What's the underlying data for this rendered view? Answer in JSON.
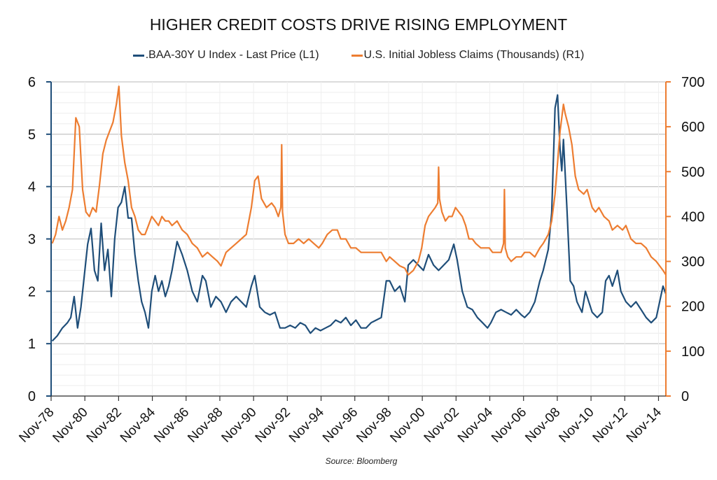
{
  "chart_data": {
    "type": "line",
    "title": "HIGHER CREDIT COSTS DRIVE RISING EMPLOYMENT",
    "source": "Source: Bloomberg",
    "legend_position": "top-center",
    "grid": true,
    "x_axis": {
      "range": [
        1978.833,
        2015.27
      ],
      "tick_values": [
        1978.833,
        1980.833,
        1982.833,
        1984.833,
        1986.833,
        1988.833,
        1990.833,
        1992.833,
        1994.833,
        1996.833,
        1998.833,
        2000.833,
        2002.833,
        2004.833,
        2006.833,
        2008.833,
        2010.833,
        2012.833,
        2014.833
      ],
      "tick_labels": [
        "Nov-78",
        "Nov-80",
        "Nov-82",
        "Nov-84",
        "Nov-86",
        "Nov-88",
        "Nov-90",
        "Nov-92",
        "Nov-94",
        "Nov-96",
        "Nov-98",
        "Nov-00",
        "Nov-02",
        "Nov-04",
        "Nov-06",
        "Nov-08",
        "Nov-10",
        "Nov-12",
        "Nov-14"
      ]
    },
    "y_left": {
      "range": [
        0,
        6
      ],
      "tick_labels": [
        "0",
        "1",
        "2",
        "3",
        "4",
        "5",
        "6"
      ],
      "color": "#1f4e79"
    },
    "y_right": {
      "range": [
        0,
        700
      ],
      "tick_labels": [
        "0",
        "100",
        "200",
        "300",
        "400",
        "500",
        "600",
        "700"
      ],
      "color": "#ed7d31"
    },
    "series": [
      {
        "name": ".BAA-30Y U Index - Last Price (L1)",
        "axis": "left",
        "color": "#1f4e79",
        "x": [
          1978.9,
          1979.2,
          1979.5,
          1979.8,
          1980.0,
          1980.2,
          1980.4,
          1980.6,
          1980.8,
          1981.0,
          1981.2,
          1981.4,
          1981.6,
          1981.8,
          1982.0,
          1982.2,
          1982.4,
          1982.6,
          1982.8,
          1983.0,
          1983.2,
          1983.4,
          1983.6,
          1983.8,
          1984.0,
          1984.2,
          1984.4,
          1984.6,
          1984.8,
          1985.0,
          1985.2,
          1985.4,
          1985.6,
          1985.8,
          1986.0,
          1986.3,
          1986.6,
          1986.9,
          1987.2,
          1987.5,
          1987.8,
          1988.0,
          1988.3,
          1988.6,
          1988.9,
          1989.2,
          1989.5,
          1989.8,
          1990.1,
          1990.4,
          1990.7,
          1990.9,
          1991.2,
          1991.5,
          1991.8,
          1992.1,
          1992.4,
          1992.7,
          1993.0,
          1993.3,
          1993.6,
          1993.9,
          1994.2,
          1994.5,
          1994.8,
          1995.1,
          1995.4,
          1995.7,
          1996.0,
          1996.3,
          1996.6,
          1996.9,
          1997.2,
          1997.5,
          1997.8,
          1998.1,
          1998.4,
          1998.7,
          1998.9,
          1999.2,
          1999.5,
          1999.8,
          2000.0,
          2000.3,
          2000.6,
          2000.9,
          2001.2,
          2001.5,
          2001.8,
          2002.1,
          2002.4,
          2002.7,
          2002.9,
          2003.2,
          2003.5,
          2003.8,
          2004.1,
          2004.4,
          2004.7,
          2004.9,
          2005.2,
          2005.5,
          2005.8,
          2006.1,
          2006.4,
          2006.7,
          2006.9,
          2007.2,
          2007.5,
          2007.8,
          2008.0,
          2008.3,
          2008.5,
          2008.7,
          2008.85,
          2009.0,
          2009.1,
          2009.2,
          2009.4,
          2009.6,
          2009.8,
          2010.0,
          2010.3,
          2010.5,
          2010.7,
          2010.9,
          2011.2,
          2011.5,
          2011.7,
          2011.9,
          2012.1,
          2012.4,
          2012.6,
          2012.9,
          2013.2,
          2013.5,
          2013.8,
          2014.1,
          2014.4,
          2014.7,
          2014.9,
          2015.1,
          2015.27
        ],
        "values": [
          1.05,
          1.15,
          1.3,
          1.4,
          1.5,
          1.9,
          1.3,
          1.7,
          2.3,
          2.9,
          3.2,
          2.4,
          2.2,
          3.3,
          2.4,
          2.8,
          1.9,
          3.0,
          3.6,
          3.7,
          4.0,
          3.4,
          3.4,
          2.7,
          2.2,
          1.8,
          1.6,
          1.3,
          2.0,
          2.3,
          2.0,
          2.2,
          1.9,
          2.1,
          2.4,
          2.95,
          2.7,
          2.4,
          2.0,
          1.8,
          2.3,
          2.2,
          1.7,
          1.9,
          1.8,
          1.6,
          1.8,
          1.9,
          1.8,
          1.7,
          2.1,
          2.3,
          1.7,
          1.6,
          1.55,
          1.6,
          1.3,
          1.3,
          1.35,
          1.3,
          1.4,
          1.35,
          1.2,
          1.3,
          1.25,
          1.3,
          1.35,
          1.45,
          1.4,
          1.5,
          1.35,
          1.45,
          1.3,
          1.3,
          1.4,
          1.45,
          1.5,
          2.2,
          2.2,
          2.0,
          2.1,
          1.8,
          2.5,
          2.6,
          2.5,
          2.4,
          2.7,
          2.5,
          2.4,
          2.5,
          2.6,
          2.9,
          2.6,
          2.0,
          1.7,
          1.65,
          1.5,
          1.4,
          1.3,
          1.4,
          1.6,
          1.65,
          1.6,
          1.55,
          1.65,
          1.55,
          1.5,
          1.6,
          1.8,
          2.2,
          2.4,
          2.8,
          3.5,
          5.5,
          5.75,
          4.7,
          4.3,
          4.9,
          3.6,
          2.2,
          2.1,
          1.8,
          1.6,
          2.0,
          1.8,
          1.6,
          1.5,
          1.6,
          2.2,
          2.3,
          2.1,
          2.4,
          2.0,
          1.8,
          1.7,
          1.8,
          1.65,
          1.5,
          1.4,
          1.5,
          1.8,
          2.1,
          1.95
        ]
      },
      {
        "name": "U.S. Initial Jobless Claims (Thousands) (R1)",
        "axis": "right",
        "color": "#ed7d31",
        "x": [
          1978.9,
          1979.1,
          1979.3,
          1979.5,
          1979.7,
          1979.9,
          1980.1,
          1980.3,
          1980.5,
          1980.7,
          1980.9,
          1981.1,
          1981.3,
          1981.5,
          1981.7,
          1981.9,
          1982.1,
          1982.3,
          1982.5,
          1982.7,
          1982.85,
          1983.0,
          1983.2,
          1983.4,
          1983.6,
          1983.8,
          1984.0,
          1984.2,
          1984.4,
          1984.6,
          1984.8,
          1985.0,
          1985.2,
          1985.4,
          1985.6,
          1985.8,
          1986.0,
          1986.3,
          1986.6,
          1986.9,
          1987.2,
          1987.5,
          1987.8,
          1988.1,
          1988.4,
          1988.7,
          1988.9,
          1989.2,
          1989.5,
          1989.8,
          1990.1,
          1990.4,
          1990.7,
          1990.9,
          1991.1,
          1991.3,
          1991.6,
          1991.9,
          1992.1,
          1992.3,
          1992.45,
          1992.5,
          1992.55,
          1992.7,
          1992.9,
          1993.2,
          1993.5,
          1993.8,
          1994.1,
          1994.4,
          1994.7,
          1994.9,
          1995.2,
          1995.5,
          1995.8,
          1996.0,
          1996.3,
          1996.6,
          1996.9,
          1997.2,
          1997.5,
          1997.8,
          1998.1,
          1998.4,
          1998.7,
          1998.9,
          1999.2,
          1999.5,
          1999.8,
          2000.0,
          2000.3,
          2000.6,
          2000.8,
          2001.0,
          2001.2,
          2001.4,
          2001.6,
          2001.75,
          2001.8,
          2001.85,
          2002.0,
          2002.2,
          2002.4,
          2002.6,
          2002.8,
          2003.0,
          2003.2,
          2003.4,
          2003.6,
          2003.8,
          2004.0,
          2004.3,
          2004.6,
          2004.8,
          2005.0,
          2005.2,
          2005.5,
          2005.65,
          2005.7,
          2005.75,
          2005.9,
          2006.1,
          2006.4,
          2006.7,
          2006.9,
          2007.2,
          2007.5,
          2007.8,
          2008.0,
          2008.3,
          2008.5,
          2008.7,
          2008.85,
          2009.0,
          2009.2,
          2009.3,
          2009.5,
          2009.7,
          2009.9,
          2010.1,
          2010.4,
          2010.6,
          2010.9,
          2011.1,
          2011.3,
          2011.6,
          2011.9,
          2012.1,
          2012.4,
          2012.7,
          2012.9,
          2013.2,
          2013.5,
          2013.8,
          2014.1,
          2014.4,
          2014.7,
          2014.9,
          2015.1,
          2015.27
        ],
        "values": [
          340,
          360,
          400,
          370,
          390,
          420,
          460,
          620,
          600,
          460,
          410,
          400,
          420,
          410,
          470,
          540,
          570,
          590,
          610,
          650,
          690,
          580,
          520,
          480,
          420,
          400,
          370,
          360,
          360,
          380,
          400,
          390,
          380,
          400,
          390,
          390,
          380,
          390,
          370,
          360,
          340,
          330,
          310,
          320,
          310,
          300,
          290,
          320,
          330,
          340,
          350,
          360,
          420,
          480,
          490,
          440,
          420,
          430,
          420,
          400,
          420,
          560,
          410,
          360,
          340,
          340,
          350,
          340,
          350,
          340,
          330,
          340,
          360,
          370,
          370,
          350,
          350,
          330,
          330,
          320,
          320,
          320,
          320,
          320,
          300,
          310,
          300,
          290,
          285,
          270,
          280,
          300,
          330,
          380,
          400,
          410,
          420,
          430,
          510,
          440,
          410,
          390,
          400,
          400,
          420,
          410,
          400,
          380,
          350,
          350,
          340,
          330,
          330,
          330,
          320,
          320,
          320,
          340,
          460,
          330,
          310,
          300,
          310,
          310,
          320,
          320,
          310,
          330,
          340,
          360,
          390,
          450,
          520,
          590,
          650,
          630,
          600,
          560,
          490,
          460,
          450,
          460,
          420,
          410,
          420,
          400,
          390,
          370,
          380,
          370,
          380,
          350,
          340,
          340,
          330,
          310,
          300,
          290,
          280,
          270
        ]
      }
    ]
  }
}
